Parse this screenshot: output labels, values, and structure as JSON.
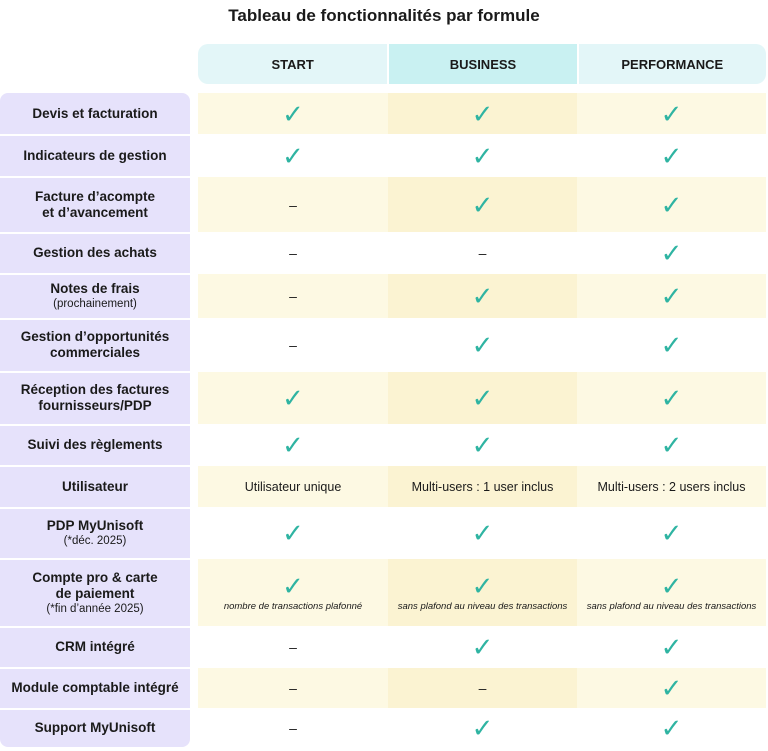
{
  "title": "Tableau de fonctionnalités par formule",
  "plans": [
    "START",
    "BUSINESS",
    "PERFORMANCE"
  ],
  "icons": {
    "check": "✓",
    "dash": "–",
    "check_color": "#2fb4a2"
  },
  "rows": [
    {
      "label": "Devis et facturation",
      "sub": "",
      "cells": [
        {
          "t": "check"
        },
        {
          "t": "check"
        },
        {
          "t": "check"
        }
      ]
    },
    {
      "label": "Indicateurs de gestion",
      "sub": "",
      "cells": [
        {
          "t": "check"
        },
        {
          "t": "check"
        },
        {
          "t": "check"
        }
      ]
    },
    {
      "label": "Facture d’acompte\net d’avancement",
      "sub": "",
      "cells": [
        {
          "t": "dash"
        },
        {
          "t": "check"
        },
        {
          "t": "check"
        }
      ]
    },
    {
      "label": "Gestion des achats",
      "sub": "",
      "cells": [
        {
          "t": "dash"
        },
        {
          "t": "dash"
        },
        {
          "t": "check"
        }
      ]
    },
    {
      "label": "Notes de frais",
      "sub": "(prochainement)",
      "cells": [
        {
          "t": "dash"
        },
        {
          "t": "check"
        },
        {
          "t": "check"
        }
      ]
    },
    {
      "label": "Gestion d’opportunités\ncommerciales",
      "sub": "",
      "cells": [
        {
          "t": "dash"
        },
        {
          "t": "check"
        },
        {
          "t": "check"
        }
      ]
    },
    {
      "label": "Réception des factures\nfournisseurs/PDP",
      "sub": "",
      "cells": [
        {
          "t": "check"
        },
        {
          "t": "check"
        },
        {
          "t": "check"
        }
      ]
    },
    {
      "label": "Suivi des règlements",
      "sub": "",
      "cells": [
        {
          "t": "check"
        },
        {
          "t": "check"
        },
        {
          "t": "check"
        }
      ]
    },
    {
      "label": "Utilisateur",
      "sub": "",
      "cells": [
        {
          "t": "text",
          "v": "Utilisateur unique"
        },
        {
          "t": "text",
          "v": "Multi-users : 1 user inclus"
        },
        {
          "t": "text",
          "v": "Multi-users : 2 users inclus"
        }
      ]
    },
    {
      "label": "PDP MyUnisoft",
      "sub": "(*déc. 2025)",
      "cells": [
        {
          "t": "check"
        },
        {
          "t": "check"
        },
        {
          "t": "check"
        }
      ]
    },
    {
      "label": "Compte pro & carte\nde paiement",
      "sub": "(*fin d’année 2025)",
      "cells": [
        {
          "t": "check",
          "note": "nombre de transactions plafonné"
        },
        {
          "t": "check",
          "note": "sans plafond au niveau des transactions"
        },
        {
          "t": "check",
          "note": "sans plafond au niveau des transactions"
        }
      ]
    },
    {
      "label": "CRM intégré",
      "sub": "",
      "cells": [
        {
          "t": "dash"
        },
        {
          "t": "check"
        },
        {
          "t": "check"
        }
      ]
    },
    {
      "label": "Module comptable intégré",
      "sub": "",
      "cells": [
        {
          "t": "dash"
        },
        {
          "t": "dash"
        },
        {
          "t": "check"
        }
      ]
    },
    {
      "label": "Support MyUnisoft",
      "sub": "",
      "cells": [
        {
          "t": "dash"
        },
        {
          "t": "check"
        },
        {
          "t": "check"
        }
      ]
    }
  ]
}
